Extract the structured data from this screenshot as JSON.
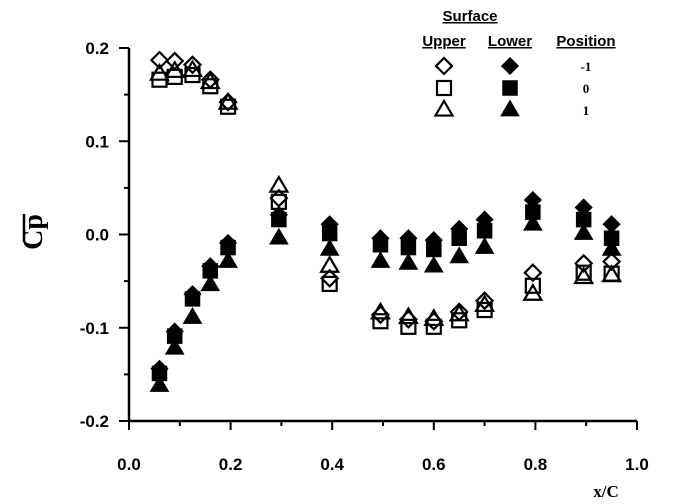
{
  "chart_data": {
    "type": "scatter",
    "xlabel": "x/C",
    "ylabel": "Cp",
    "xlim": [
      0.0,
      1.0
    ],
    "ylim": [
      -0.2,
      0.2
    ],
    "x_ticks": [
      "0.0",
      "0.2",
      "0.4",
      "0.6",
      "0.8",
      "1.0"
    ],
    "y_ticks": [
      "-0.2",
      "-0.1",
      "0.0",
      "0.1",
      "0.2"
    ],
    "grid": false,
    "legend": {
      "placement": "top-right",
      "title": "Surface",
      "columns": [
        "Upper",
        "Lower",
        "Position"
      ],
      "rows": [
        {
          "position": "-1",
          "upper_marker": "diamond-open",
          "lower_marker": "diamond-filled"
        },
        {
          "position": "0",
          "upper_marker": "square-open",
          "lower_marker": "square-filled"
        },
        {
          "position": "1",
          "upper_marker": "triangle-open",
          "lower_marker": "triangle-filled"
        }
      ]
    },
    "series": [
      {
        "surface": "Upper",
        "position": "-1",
        "marker": "diamond-open",
        "x": [
          0.06,
          0.09,
          0.125,
          0.16,
          0.195,
          0.295,
          0.395,
          0.495,
          0.55,
          0.6,
          0.65,
          0.7,
          0.795,
          0.895,
          0.95
        ],
        "y": [
          0.187,
          0.186,
          0.182,
          0.166,
          0.142,
          0.039,
          -0.047,
          -0.086,
          -0.091,
          -0.093,
          -0.083,
          -0.071,
          -0.041,
          -0.031,
          -0.029
        ]
      },
      {
        "surface": "Upper",
        "position": "0",
        "marker": "square-open",
        "x": [
          0.06,
          0.09,
          0.125,
          0.16,
          0.195,
          0.295,
          0.395,
          0.495,
          0.55,
          0.6,
          0.65,
          0.7,
          0.795,
          0.895,
          0.95
        ],
        "y": [
          0.166,
          0.169,
          0.171,
          0.159,
          0.137,
          0.035,
          -0.053,
          -0.093,
          -0.099,
          -0.099,
          -0.092,
          -0.081,
          -0.055,
          -0.041,
          -0.042
        ]
      },
      {
        "surface": "Upper",
        "position": "1",
        "marker": "triangle-open",
        "x": [
          0.06,
          0.09,
          0.125,
          0.16,
          0.195,
          0.295,
          0.395,
          0.495,
          0.55,
          0.6,
          0.65,
          0.7,
          0.795,
          0.895,
          0.95
        ],
        "y": [
          0.172,
          0.175,
          0.176,
          0.163,
          0.141,
          0.052,
          -0.034,
          -0.084,
          -0.089,
          -0.091,
          -0.086,
          -0.076,
          -0.064,
          -0.046,
          -0.044
        ]
      },
      {
        "surface": "Lower",
        "position": "-1",
        "marker": "diamond-filled",
        "x": [
          0.06,
          0.09,
          0.125,
          0.16,
          0.195,
          0.295,
          0.395,
          0.495,
          0.55,
          0.6,
          0.65,
          0.7,
          0.795,
          0.895,
          0.95
        ],
        "y": [
          -0.144,
          -0.104,
          -0.064,
          -0.034,
          -0.009,
          0.021,
          0.011,
          -0.004,
          -0.004,
          -0.006,
          0.006,
          0.016,
          0.037,
          0.029,
          0.011
        ]
      },
      {
        "surface": "Lower",
        "position": "0",
        "marker": "square-filled",
        "x": [
          0.06,
          0.09,
          0.125,
          0.16,
          0.195,
          0.295,
          0.395,
          0.495,
          0.55,
          0.6,
          0.65,
          0.7,
          0.795,
          0.895,
          0.95
        ],
        "y": [
          -0.149,
          -0.109,
          -0.069,
          -0.039,
          -0.014,
          0.016,
          0.001,
          -0.011,
          -0.014,
          -0.016,
          -0.004,
          0.004,
          0.024,
          0.016,
          -0.004
        ]
      },
      {
        "surface": "Lower",
        "position": "1",
        "marker": "triangle-filled",
        "x": [
          0.06,
          0.09,
          0.125,
          0.16,
          0.195,
          0.295,
          0.395,
          0.495,
          0.55,
          0.6,
          0.65,
          0.7,
          0.795,
          0.895,
          0.95
        ],
        "y": [
          -0.162,
          -0.122,
          -0.089,
          -0.054,
          -0.029,
          -0.004,
          -0.016,
          -0.029,
          -0.031,
          -0.034,
          -0.024,
          -0.014,
          0.011,
          0.001,
          -0.016
        ]
      }
    ]
  }
}
